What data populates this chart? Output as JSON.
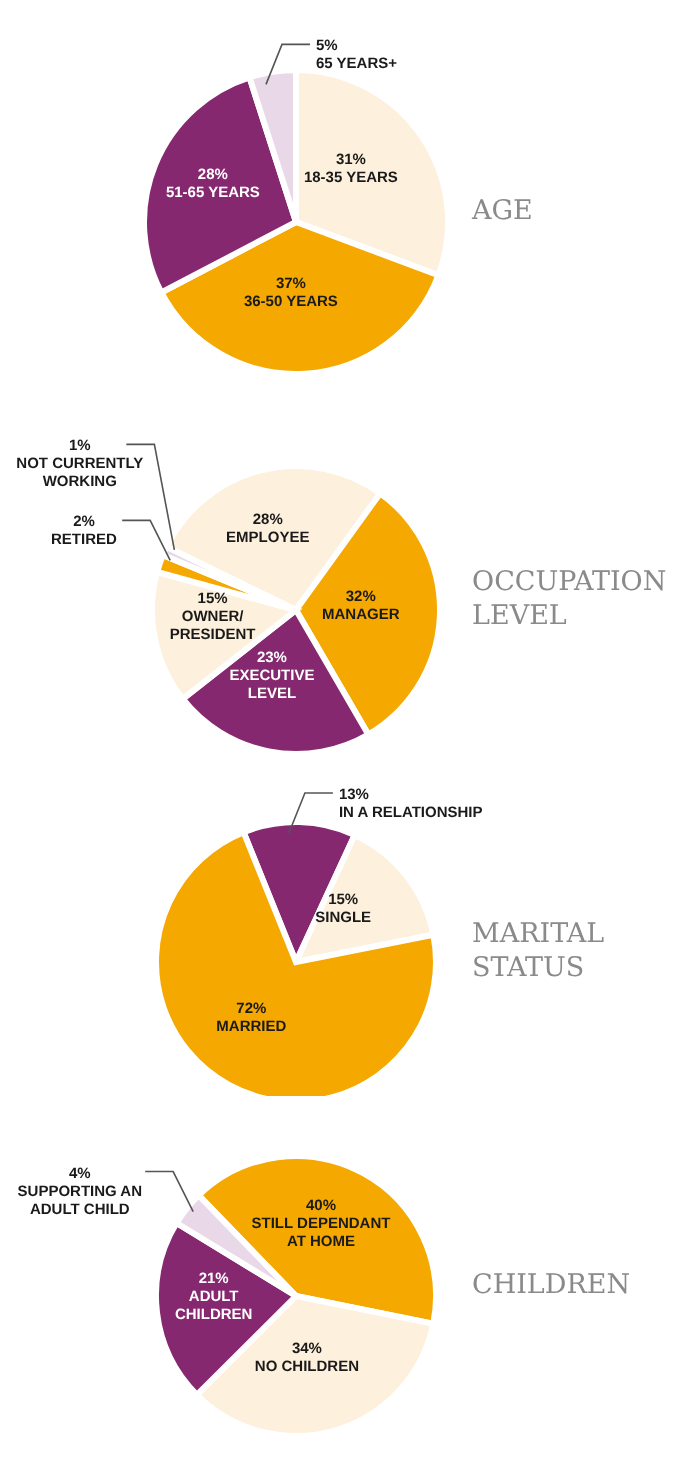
{
  "chart_data": [
    {
      "type": "pie",
      "title": "AGE",
      "categories": [
        "18-35 YEARS",
        "36-50 YEARS",
        "51-65 YEARS",
        "65 YEARS+"
      ],
      "values": [
        31,
        37,
        28,
        5
      ],
      "value_labels": [
        "31%",
        "37%",
        "28%",
        "5%"
      ],
      "colors": [
        "#fdf0dc",
        "#f5a800",
        "#86286f",
        "#e8d8e8"
      ]
    },
    {
      "type": "pie",
      "title": "OCCUPATION LEVEL",
      "categories": [
        "EMPLOYEE",
        "MANAGER",
        "EXECUTIVE LEVEL",
        "OWNER/PRESIDENT",
        "RETIRED",
        "NOT CURRENTLY WORKING"
      ],
      "values": [
        28,
        32,
        23,
        15,
        2,
        1
      ],
      "value_labels": [
        "28%",
        "32%",
        "23%",
        "15%",
        "2%",
        "1%"
      ],
      "colors": [
        "#fdf0dc",
        "#f5a800",
        "#86286f",
        "#fdf0dc",
        "#f5a800",
        "#e8d8e8"
      ]
    },
    {
      "type": "pie",
      "title": "MARITAL STATUS",
      "categories": [
        "IN A RELATIONSHIP",
        "SINGLE",
        "MARRIED"
      ],
      "values": [
        13,
        15,
        72
      ],
      "value_labels": [
        "13%",
        "15%",
        "72%"
      ],
      "colors": [
        "#86286f",
        "#fdf0dc",
        "#f5a800"
      ]
    },
    {
      "type": "pie",
      "title": "CHILDREN",
      "categories": [
        "STILL DEPENDANT AT HOME",
        "NO CHILDREN",
        "ADULT CHILDREN",
        "SUPPORTING AN ADULT CHILD"
      ],
      "values": [
        40,
        34,
        21,
        4
      ],
      "value_labels": [
        "40%",
        "34%",
        "21%",
        "4%"
      ],
      "colors": [
        "#f5a800",
        "#fdf0dc",
        "#86286f",
        "#e8d8e8"
      ]
    }
  ]
}
